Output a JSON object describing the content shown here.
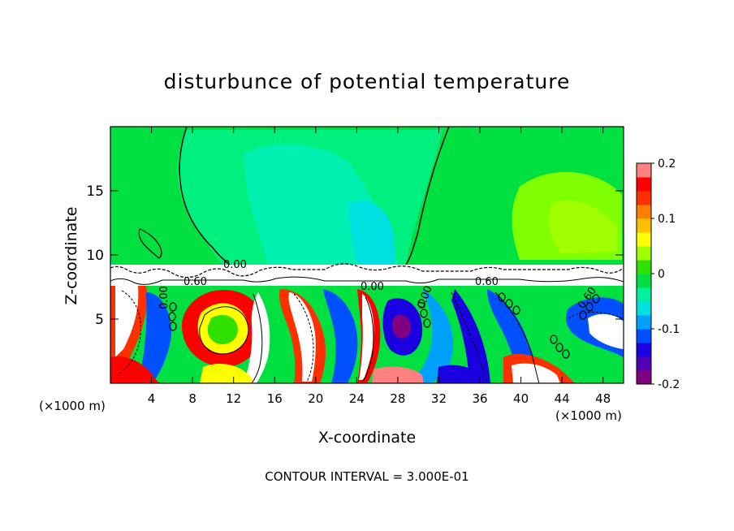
{
  "chart_data": {
    "type": "heatmap",
    "title": "disturbunce of potential temperature",
    "xlabel": "X-coordinate",
    "ylabel": "Z-coordinate",
    "x_unit": "(×1000 m)",
    "xlim": [
      0,
      50
    ],
    "ylim": [
      0,
      20
    ],
    "x_ticks": [
      4,
      8,
      12,
      16,
      20,
      24,
      28,
      32,
      36,
      40,
      44,
      48
    ],
    "y_ticks": [
      5,
      10,
      15
    ],
    "colorbar": {
      "range": [
        -0.2,
        0.2
      ],
      "ticks": [
        "0.2",
        "0.1",
        "0",
        "-0.1",
        "-0.2"
      ],
      "colors": [
        "#800080",
        "#5000b0",
        "#1a00e0",
        "#0050ff",
        "#00a0ff",
        "#00e0e0",
        "#00f0a0",
        "#00e040",
        "#30e000",
        "#a0ff00",
        "#ffff00",
        "#ffc000",
        "#ff8000",
        "#ff3000",
        "#ff0000",
        "#ff8080"
      ]
    },
    "contour_labels": [
      "0.00",
      "0.60",
      "0.00",
      "0.60",
      "0.00",
      "0.00",
      "0.60"
    ],
    "annotation": "CONTOUR INTERVAL = 3.000E-01"
  }
}
